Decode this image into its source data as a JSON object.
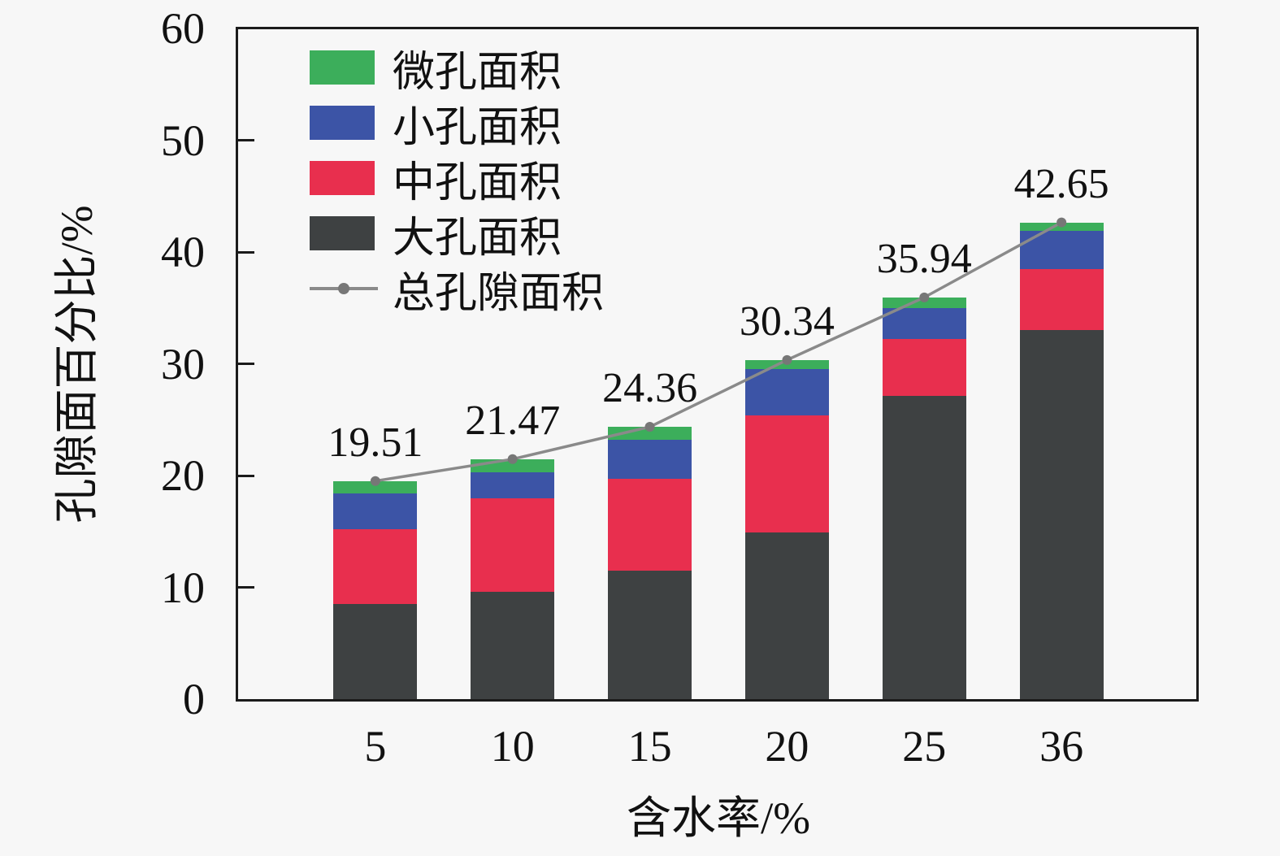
{
  "background": "#f7f7f7",
  "axis_color": "#1b1b1b",
  "text_color": "#111111",
  "chart_data": {
    "type": "bar",
    "variant": "stacked-bars-with-total-line",
    "title": "",
    "xlabel": "含水率/%",
    "ylabel": "孔隙面百分比/%",
    "ylim": [
      0,
      60
    ],
    "yticks": [
      "0",
      "10",
      "20",
      "30",
      "40",
      "50",
      "60"
    ],
    "grid": false,
    "legend_position": "upper-left-inside",
    "categories": [
      "5",
      "10",
      "15",
      "20",
      "25",
      "36"
    ],
    "series": [
      {
        "name": "大孔面积",
        "color": "#3e4142",
        "values": [
          8.5,
          9.6,
          11.5,
          14.9,
          27.1,
          33.0
        ]
      },
      {
        "name": "中孔面积",
        "color": "#e82f4e",
        "values": [
          6.7,
          8.4,
          8.2,
          10.5,
          5.1,
          5.5
        ]
      },
      {
        "name": "小孔面积",
        "color": "#3c54a6",
        "values": [
          3.2,
          2.3,
          3.5,
          4.1,
          2.8,
          3.4
        ]
      },
      {
        "name": "微孔面积",
        "color": "#3cae5b",
        "values": [
          1.11,
          1.17,
          1.16,
          0.84,
          0.94,
          0.75
        ]
      }
    ],
    "line_series": {
      "name": "总孔隙面积",
      "color": "#8a8a8a",
      "marker_color": "#777777",
      "values": [
        19.51,
        21.47,
        24.36,
        30.34,
        35.94,
        42.65
      ],
      "labels": [
        "19.51",
        "21.47",
        "24.36",
        "30.34",
        "35.94",
        "42.65"
      ]
    },
    "legend": [
      {
        "label": "微孔面积",
        "type": "box",
        "color": "#3cae5b"
      },
      {
        "label": "小孔面积",
        "type": "box",
        "color": "#3c54a6"
      },
      {
        "label": "中孔面积",
        "type": "box",
        "color": "#e82f4e"
      },
      {
        "label": "大孔面积",
        "type": "box",
        "color": "#3e4142"
      },
      {
        "label": "总孔隙面积",
        "type": "line",
        "color": "#8a8a8a"
      }
    ]
  }
}
